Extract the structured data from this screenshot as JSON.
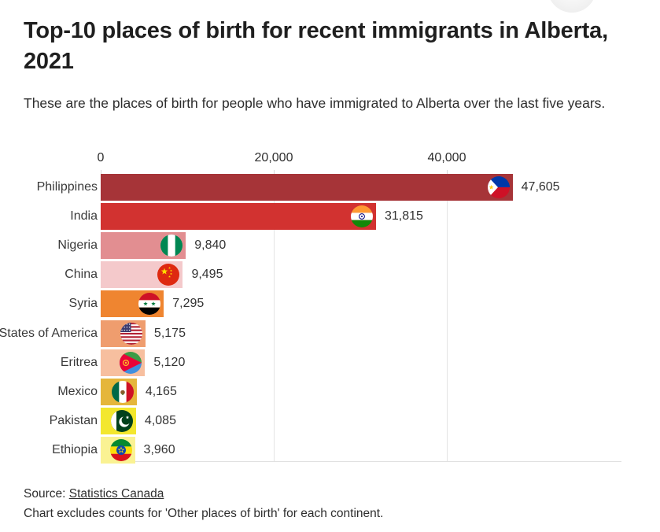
{
  "header": {
    "title": "Top-10 places of birth for recent immigrants in Alberta, 2021",
    "subtitle": "These are the places of birth for people who have immigrated to Alberta over the last five years."
  },
  "chart_data": {
    "type": "bar",
    "orientation": "horizontal",
    "title": "Top-10 places of birth for recent immigrants in Alberta, 2021",
    "xlabel": "",
    "ylabel": "",
    "x_axis": {
      "tick_labels": [
        "0",
        "20,000",
        "40,000"
      ],
      "tick_values": [
        0,
        20000,
        40000
      ],
      "range": [
        0,
        60180
      ],
      "grid": true
    },
    "legend": "none",
    "rows": [
      {
        "label": "Philippines",
        "value": 47605,
        "value_label": "47,605",
        "color": "#a63438",
        "flag": "philippines-flag"
      },
      {
        "label": "India",
        "value": 31815,
        "value_label": "31,815",
        "color": "#d23230",
        "flag": "india-flag"
      },
      {
        "label": "Nigeria",
        "value": 9840,
        "value_label": "9,840",
        "color": "#e28e91",
        "flag": "nigeria-flag"
      },
      {
        "label": "China",
        "value": 9495,
        "value_label": "9,495",
        "color": "#f4c9cb",
        "flag": "china-flag"
      },
      {
        "label": "Syria",
        "value": 7295,
        "value_label": "7,295",
        "color": "#ef8530",
        "flag": "syria-flag"
      },
      {
        "label": "United States of America",
        "value": 5175,
        "value_label": "5,175",
        "color": "#ef9d6e",
        "flag": "usa-flag"
      },
      {
        "label": "Eritrea",
        "value": 5120,
        "value_label": "5,120",
        "color": "#f7bf9f",
        "flag": "eritrea-flag"
      },
      {
        "label": "Mexico",
        "value": 4165,
        "value_label": "4,165",
        "color": "#e5b63b",
        "flag": "mexico-flag"
      },
      {
        "label": "Pakistan",
        "value": 4085,
        "value_label": "4,085",
        "color": "#f3e72e",
        "flag": "pakistan-flag"
      },
      {
        "label": "Ethiopia",
        "value": 3960,
        "value_label": "3,960",
        "color": "#faf293",
        "flag": "ethiopia-flag"
      }
    ]
  },
  "footer": {
    "source_prefix": "Source: ",
    "source_link": "Statistics Canada",
    "note": "Chart excludes counts for 'Other places of birth' for each continent."
  }
}
